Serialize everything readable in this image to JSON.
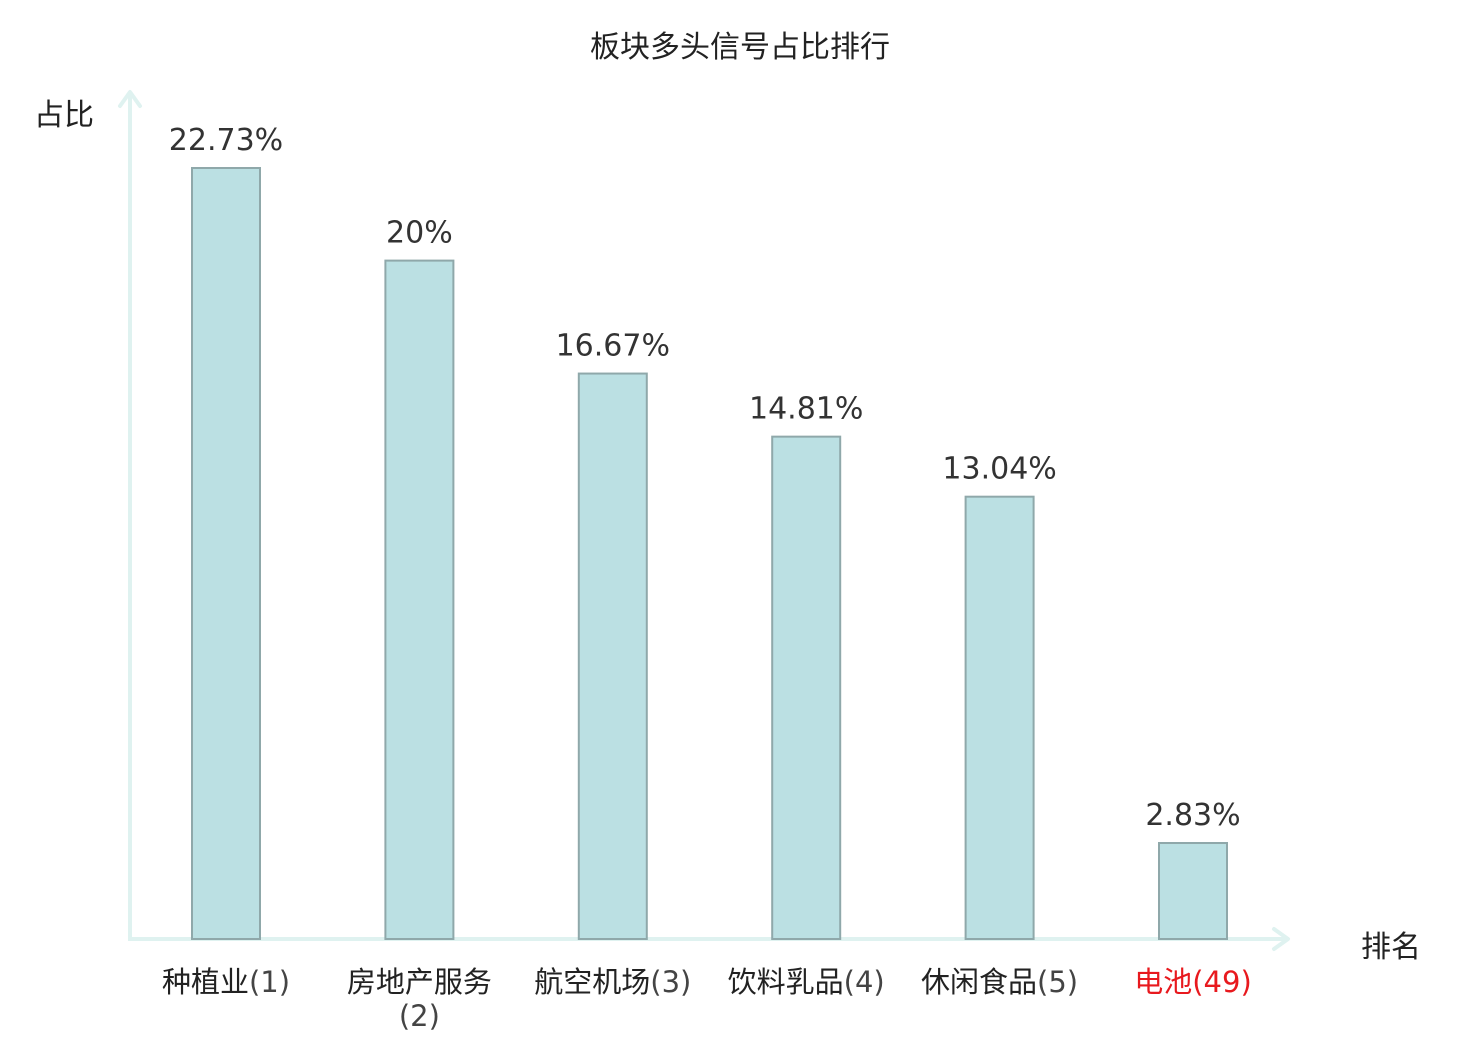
{
  "chart_data": {
    "type": "bar",
    "title": "板块多头信号占比排行",
    "xlabel": "排名",
    "ylabel": "占比",
    "categories": [
      {
        "name": "种植业",
        "rank": "(1)"
      },
      {
        "name": "房地产服务",
        "rank": "(2)"
      },
      {
        "name": "航空机场",
        "rank": "(3)"
      },
      {
        "name": "饮料乳品",
        "rank": "(4)"
      },
      {
        "name": "休闲食品",
        "rank": "(5)"
      },
      {
        "name": "电池",
        "rank": "(49)"
      }
    ],
    "values": [
      22.73,
      20,
      16.67,
      14.81,
      13.04,
      2.83
    ],
    "value_labels": [
      "22.73%",
      "20%",
      "16.67%",
      "14.81%",
      "13.04%",
      "2.83%"
    ],
    "highlight_index": 5,
    "ylim": [
      0,
      25
    ],
    "grid": false,
    "legend": "none",
    "colors": {
      "bar_fill": "#bbe0e3",
      "bar_stroke": "#8fa8aa",
      "axis": "#dff2f0",
      "highlight_label": "#e8191e",
      "value_label": "#333333"
    }
  }
}
